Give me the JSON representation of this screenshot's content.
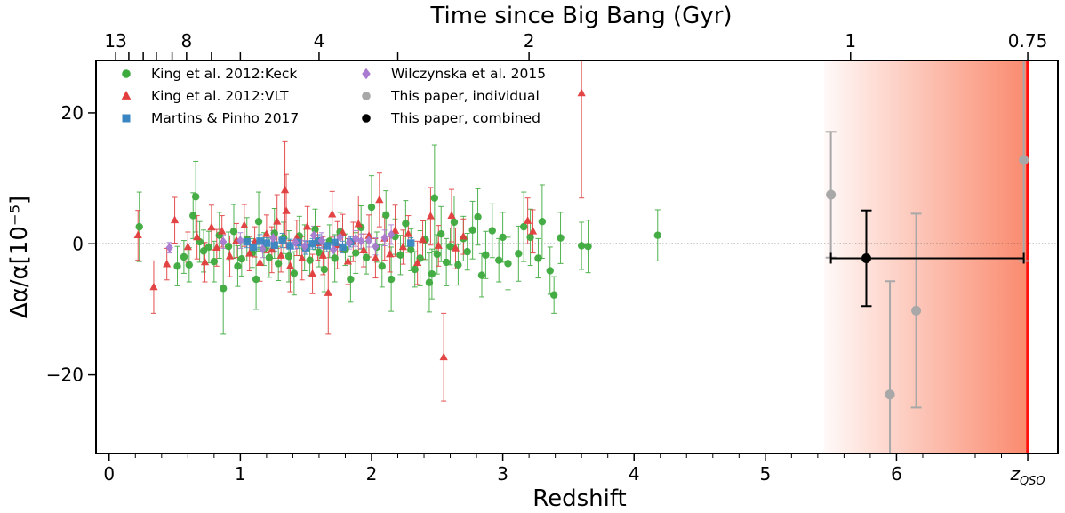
{
  "chart_data": {
    "type": "scatter",
    "xlabel": "Redshift",
    "ylabel": "Δα/α[10⁻⁵]",
    "top_xlabel": "Time since Big Bang (Gyr)",
    "xlim": [
      -0.1,
      7.23
    ],
    "ylim": [
      -32,
      28
    ],
    "x_ticks": [
      {
        "value": 0,
        "label": "0"
      },
      {
        "value": 1,
        "label": "1"
      },
      {
        "value": 2,
        "label": "2"
      },
      {
        "value": 3,
        "label": "3"
      },
      {
        "value": 4,
        "label": "4"
      },
      {
        "value": 5,
        "label": "5"
      },
      {
        "value": 6,
        "label": "6"
      },
      {
        "value": 7.0,
        "label": "zQSO"
      }
    ],
    "x_minor_ticks": [
      0.2,
      0.4,
      0.6,
      0.8,
      1.2,
      1.4,
      1.6,
      1.8,
      2.2,
      2.4,
      2.6,
      2.8,
      3.2,
      3.4,
      3.6,
      3.8,
      4.2,
      4.4,
      4.6,
      4.8,
      5.2,
      5.4,
      5.6,
      5.8,
      6.2,
      6.4,
      6.6,
      6.8
    ],
    "y_ticks": [
      {
        "value": 20,
        "label": "20"
      },
      {
        "value": 0,
        "label": "0"
      },
      {
        "value": -20,
        "label": "−20"
      }
    ],
    "top_ticks": [
      {
        "z": 0.05,
        "label": "13"
      },
      {
        "z": 0.15,
        "label": ""
      },
      {
        "z": 0.26,
        "label": ""
      },
      {
        "z": 0.36,
        "label": ""
      },
      {
        "z": 0.48,
        "label": ""
      },
      {
        "z": 0.59,
        "label": "8"
      },
      {
        "z": 0.78,
        "label": ""
      },
      {
        "z": 1.0,
        "label": ""
      },
      {
        "z": 1.6,
        "label": "4"
      },
      {
        "z": 2.2,
        "label": ""
      },
      {
        "z": 3.2,
        "label": "2"
      },
      {
        "z": 5.65,
        "label": "1"
      },
      {
        "z": 7.0,
        "label": "0.75"
      }
    ],
    "zero_line": 0,
    "shaded_region": {
      "x_start": 5.45,
      "x_end": 7.0,
      "color": "#fa8a6e"
    },
    "qso_line": {
      "x": 7.0,
      "color": "#ff1010"
    },
    "legend_position": "top-left",
    "colors": {
      "keck": "#3daa3d",
      "vlt": "#e23c3c",
      "martins": "#3a86c2",
      "wilczynska": "#a97bd1",
      "individual": "#a8a8a8",
      "combined": "#000000"
    },
    "series": [
      {
        "name": "King et al. 2012:Keck",
        "marker": "circle",
        "key": "keck",
        "points": [
          [
            0.23,
            2.6,
            5.3
          ],
          [
            0.52,
            -3.4,
            3.0
          ],
          [
            0.57,
            -2.0,
            2.5
          ],
          [
            0.61,
            -3.2,
            2.6
          ],
          [
            0.64,
            4.3,
            3.5
          ],
          [
            0.66,
            7.2,
            5.4
          ],
          [
            0.69,
            0.3,
            3.1
          ],
          [
            0.72,
            -1.1,
            3.2
          ],
          [
            0.76,
            -0.5,
            2.4
          ],
          [
            0.8,
            -2.7,
            3.1
          ],
          [
            0.84,
            1.3,
            3.5
          ],
          [
            0.87,
            -6.8,
            7.0
          ],
          [
            0.91,
            -0.4,
            2.2
          ],
          [
            0.95,
            1.9,
            4.1
          ],
          [
            0.98,
            -3.4,
            3.1
          ],
          [
            1.01,
            -2.3,
            2.6
          ],
          [
            1.05,
            0.7,
            3.3
          ],
          [
            1.09,
            -1.4,
            2.2
          ],
          [
            1.12,
            -5.4,
            4.6
          ],
          [
            1.14,
            3.4,
            4.5
          ],
          [
            1.18,
            -0.8,
            2.5
          ],
          [
            1.22,
            -2.1,
            3.0
          ],
          [
            1.26,
            1.6,
            3.8
          ],
          [
            1.29,
            -3.0,
            2.6
          ],
          [
            1.33,
            0.9,
            2.4
          ],
          [
            1.37,
            -1.9,
            3.9
          ],
          [
            1.41,
            -4.5,
            3.3
          ],
          [
            1.45,
            1.2,
            3.0
          ],
          [
            1.49,
            -0.6,
            3.5
          ],
          [
            1.53,
            -2.5,
            2.3
          ],
          [
            1.57,
            2.2,
            3.1
          ],
          [
            1.6,
            -1.3,
            2.2
          ],
          [
            1.64,
            -3.9,
            3.4
          ],
          [
            1.68,
            0.4,
            2.5
          ],
          [
            1.72,
            -2.2,
            3.6
          ],
          [
            1.76,
            1.8,
            3.0
          ],
          [
            1.8,
            -0.9,
            2.4
          ],
          [
            1.84,
            -5.4,
            3.5
          ],
          [
            1.88,
            -1.4,
            3.1
          ],
          [
            1.92,
            2.5,
            3.3
          ],
          [
            1.96,
            -2.1,
            2.5
          ],
          [
            2.0,
            5.6,
            4.8
          ],
          [
            2.04,
            -0.5,
            2.3
          ],
          [
            2.08,
            -3.4,
            3.2
          ],
          [
            2.11,
            4.4,
            3.7
          ],
          [
            2.15,
            -5.4,
            4.9
          ],
          [
            2.18,
            1.1,
            2.7
          ],
          [
            2.22,
            -1.7,
            3.0
          ],
          [
            2.26,
            3.1,
            3.5
          ],
          [
            2.3,
            -0.9,
            3.2
          ],
          [
            2.33,
            -3.9,
            2.7
          ],
          [
            2.37,
            -2.2,
            4.2
          ],
          [
            2.41,
            0.6,
            3.0
          ],
          [
            2.44,
            -5.9,
            4.5
          ],
          [
            2.46,
            -4.6,
            3.8
          ],
          [
            2.48,
            7.0,
            8.1
          ],
          [
            2.5,
            -1.6,
            3.0
          ],
          [
            2.53,
            1.5,
            4.2
          ],
          [
            2.57,
            -2.8,
            3.6
          ],
          [
            2.6,
            -0.4,
            2.8
          ],
          [
            2.63,
            3.3,
            4.0
          ],
          [
            2.66,
            -3.2,
            3.1
          ],
          [
            2.7,
            0.8,
            3.4
          ],
          [
            2.73,
            -1.2,
            2.8
          ],
          [
            2.77,
            2.1,
            4.4
          ],
          [
            2.81,
            4.1,
            4.3
          ],
          [
            2.84,
            -4.8,
            3.3
          ],
          [
            2.87,
            -1.7,
            3.6
          ],
          [
            2.92,
            2.0,
            4.1
          ],
          [
            2.97,
            -2.5,
            3.3
          ],
          [
            3.0,
            1.0,
            3.8
          ],
          [
            3.04,
            -3.0,
            4.0
          ],
          [
            3.12,
            -1.5,
            4.2
          ],
          [
            3.16,
            2.6,
            5.3
          ],
          [
            3.21,
            1.0,
            4.3
          ],
          [
            3.27,
            -2.2,
            3.0
          ],
          [
            3.3,
            3.4,
            5.6
          ],
          [
            3.36,
            -4.1,
            3.6
          ],
          [
            3.39,
            -7.8,
            2.8
          ],
          [
            3.44,
            0.9,
            3.9
          ],
          [
            3.6,
            -0.3,
            3.6
          ],
          [
            3.65,
            -0.4,
            4.0
          ],
          [
            4.18,
            1.3,
            3.9
          ]
        ]
      },
      {
        "name": "King et al. 2012:VLT",
        "marker": "triangle",
        "key": "vlt",
        "points": [
          [
            0.22,
            1.3,
            3.8
          ],
          [
            0.34,
            -6.6,
            4.0
          ],
          [
            0.44,
            -3.1,
            2.4
          ],
          [
            0.5,
            3.6,
            3.5
          ],
          [
            0.6,
            -0.5,
            2.3
          ],
          [
            0.67,
            1.0,
            3.3
          ],
          [
            0.73,
            -2.8,
            3.0
          ],
          [
            0.78,
            2.5,
            3.4
          ],
          [
            0.82,
            -0.6,
            2.8
          ],
          [
            0.86,
            1.9,
            2.4
          ],
          [
            0.92,
            -1.9,
            3.1
          ],
          [
            0.97,
            0.5,
            2.6
          ],
          [
            1.03,
            2.8,
            3.2
          ],
          [
            1.07,
            -1.5,
            2.6
          ],
          [
            1.11,
            0.3,
            2.3
          ],
          [
            1.15,
            -2.9,
            2.8
          ],
          [
            1.2,
            1.5,
            2.9
          ],
          [
            1.24,
            -0.9,
            3.5
          ],
          [
            1.28,
            3.4,
            4.1
          ],
          [
            1.31,
            -1.8,
            2.5
          ],
          [
            1.34,
            8.2,
            7.4
          ],
          [
            1.35,
            5.0,
            5.6
          ],
          [
            1.38,
            -3.4,
            3.9
          ],
          [
            1.43,
            0.9,
            2.7
          ],
          [
            1.47,
            -2.2,
            3.3
          ],
          [
            1.51,
            2.6,
            3.1
          ],
          [
            1.55,
            -4.6,
            3.0
          ],
          [
            1.59,
            0.1,
            2.6
          ],
          [
            1.63,
            -1.8,
            2.9
          ],
          [
            1.67,
            -7.5,
            6.3
          ],
          [
            1.7,
            4.5,
            3.5
          ],
          [
            1.74,
            -0.2,
            3.6
          ],
          [
            1.78,
            1.7,
            2.8
          ],
          [
            1.82,
            -2.7,
            3.5
          ],
          [
            1.86,
            0.3,
            3.0
          ],
          [
            1.9,
            3.0,
            4.3
          ],
          [
            1.94,
            -1.0,
            2.5
          ],
          [
            1.98,
            1.2,
            3.2
          ],
          [
            2.03,
            -2.2,
            3.0
          ],
          [
            2.06,
            6.7,
            4.1
          ],
          [
            2.1,
            0.8,
            3.3
          ],
          [
            2.14,
            -1.6,
            2.7
          ],
          [
            2.18,
            2.0,
            3.9
          ],
          [
            2.24,
            -0.5,
            2.6
          ],
          [
            2.28,
            1.5,
            2.8
          ],
          [
            2.35,
            -2.9,
            3.3
          ],
          [
            2.39,
            0.6,
            2.9
          ],
          [
            2.45,
            4.2,
            4.4
          ],
          [
            2.51,
            -0.3,
            3.1
          ],
          [
            2.55,
            -17.3,
            6.7
          ],
          [
            2.61,
            4.3,
            4.0
          ],
          [
            2.64,
            -0.7,
            3.1
          ],
          [
            2.7,
            1.1,
            2.7
          ],
          [
            3.19,
            3.5,
            3.5
          ],
          [
            3.23,
            1.9,
            3.3
          ],
          [
            3.6,
            23.0,
            16.0
          ]
        ]
      },
      {
        "name": "Martins & Pinho 2017",
        "marker": "square",
        "key": "martins",
        "points": [
          [
            1.05,
            0.3,
            0.9
          ],
          [
            1.1,
            -0.5,
            0.9
          ],
          [
            1.15,
            0.4,
            1.0
          ],
          [
            1.2,
            0.1,
            0.8
          ],
          [
            1.26,
            -0.2,
            0.9
          ],
          [
            1.32,
            0.5,
            1.1
          ],
          [
            1.38,
            -0.3,
            1.0
          ],
          [
            1.44,
            0.2,
            0.9
          ],
          [
            1.5,
            -0.6,
            1.0
          ],
          [
            1.55,
            0.0,
            0.8
          ],
          [
            1.6,
            0.4,
            1.0
          ],
          [
            1.66,
            -0.3,
            0.9
          ],
          [
            1.72,
            0.2,
            1.0
          ],
          [
            1.78,
            -0.5,
            0.9
          ],
          [
            1.84,
            0.3,
            0.8
          ],
          [
            2.3,
            0.1,
            0.8
          ]
        ]
      },
      {
        "name": "Wilczynska et al. 2015",
        "marker": "diamond",
        "key": "wilczynska",
        "points": [
          [
            0.46,
            -0.6,
            0.8
          ],
          [
            0.87,
            0.3,
            1.0
          ],
          [
            1.0,
            0.5,
            1.2
          ],
          [
            1.17,
            -0.8,
            1.3
          ],
          [
            1.25,
            0.9,
            1.1
          ],
          [
            1.42,
            0.2,
            1.0
          ],
          [
            1.49,
            -0.4,
            0.9
          ],
          [
            1.56,
            1.3,
            1.4
          ],
          [
            1.62,
            0.5,
            1.2
          ],
          [
            1.71,
            -0.9,
            1.1
          ],
          [
            1.76,
            1.0,
            1.3
          ],
          [
            1.83,
            0.2,
            1.0
          ],
          [
            1.88,
            0.8,
            1.2
          ],
          [
            1.92,
            0.4,
            1.1
          ],
          [
            1.98,
            0.5,
            1.0
          ],
          [
            2.03,
            -0.4,
            1.3
          ],
          [
            2.1,
            0.9,
            1.2
          ],
          [
            2.15,
            1.4,
            1.5
          ]
        ]
      },
      {
        "name": "This paper, individual",
        "marker": "circle",
        "key": "individual",
        "points": [
          [
            5.5,
            7.5,
            9.6
          ],
          [
            5.95,
            -23.0,
            17.3
          ],
          [
            6.15,
            -10.2,
            14.8
          ],
          [
            6.97,
            12.8,
            15.4
          ]
        ]
      },
      {
        "name": "This paper, combined",
        "marker": "circle",
        "key": "combined",
        "points": [
          [
            5.77,
            -2.2,
            7.3
          ]
        ],
        "x_error": [
          5.5,
          6.97
        ]
      }
    ]
  }
}
